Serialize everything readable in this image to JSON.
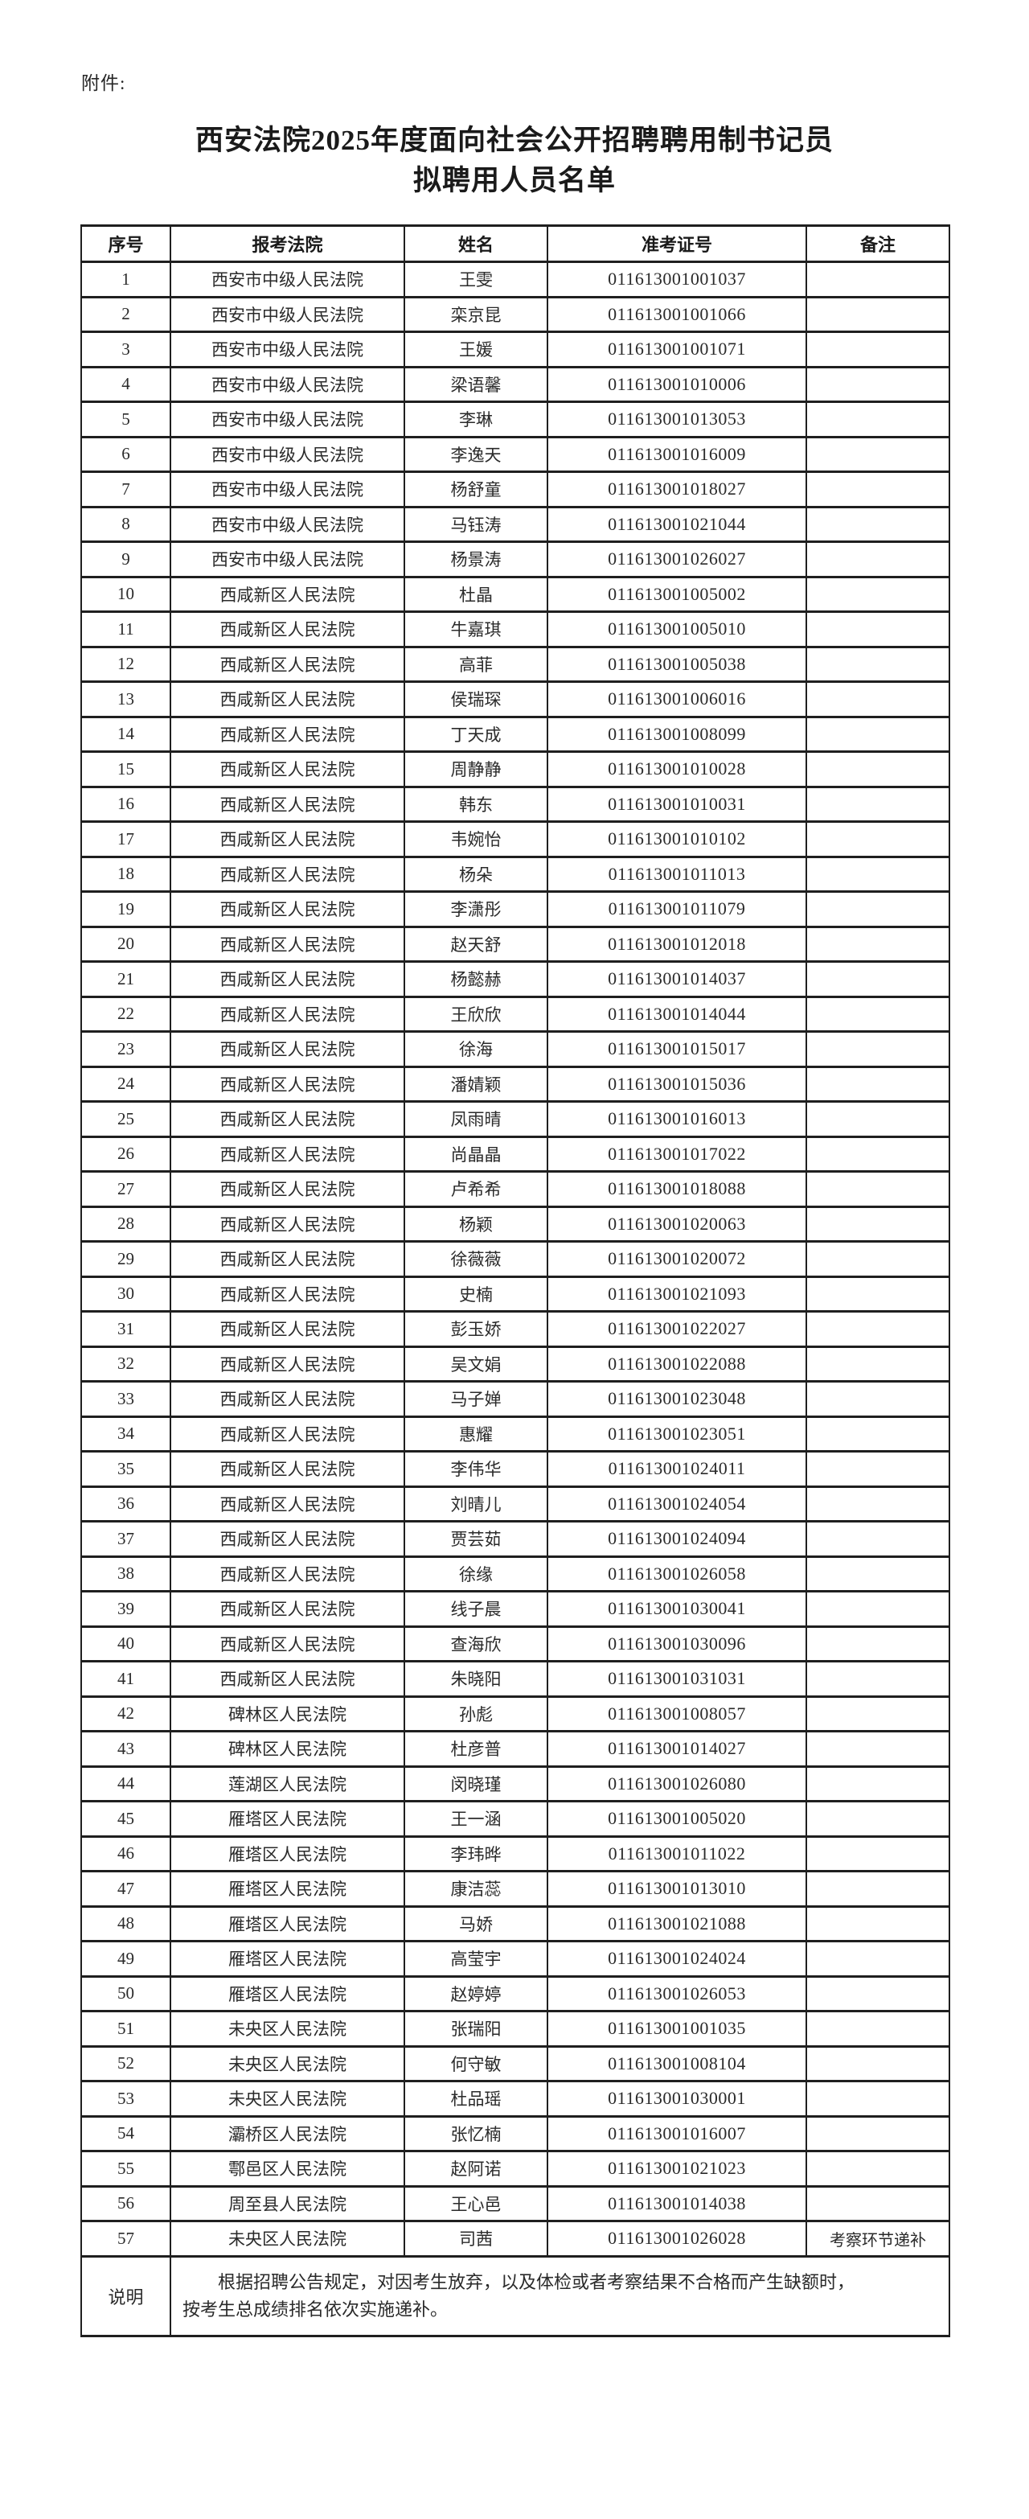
{
  "page": {
    "attachment_label": "附件:",
    "title_line1": "西安法院2025年度面向社会公开招聘聘用制书记员",
    "title_line2": "拟聘用人员名单"
  },
  "table": {
    "headers": [
      "序号",
      "报考法院",
      "姓名",
      "准考证号",
      "备注"
    ],
    "rows": [
      {
        "no": "1",
        "court": "西安市中级人民法院",
        "name": "王雯",
        "ticket": "011613001001037",
        "remark": ""
      },
      {
        "no": "2",
        "court": "西安市中级人民法院",
        "name": "栾京昆",
        "ticket": "011613001001066",
        "remark": ""
      },
      {
        "no": "3",
        "court": "西安市中级人民法院",
        "name": "王媛",
        "ticket": "011613001001071",
        "remark": ""
      },
      {
        "no": "4",
        "court": "西安市中级人民法院",
        "name": "梁语馨",
        "ticket": "011613001010006",
        "remark": ""
      },
      {
        "no": "5",
        "court": "西安市中级人民法院",
        "name": "李琳",
        "ticket": "011613001013053",
        "remark": ""
      },
      {
        "no": "6",
        "court": "西安市中级人民法院",
        "name": "李逸天",
        "ticket": "011613001016009",
        "remark": ""
      },
      {
        "no": "7",
        "court": "西安市中级人民法院",
        "name": "杨舒童",
        "ticket": "011613001018027",
        "remark": ""
      },
      {
        "no": "8",
        "court": "西安市中级人民法院",
        "name": "马钰涛",
        "ticket": "011613001021044",
        "remark": ""
      },
      {
        "no": "9",
        "court": "西安市中级人民法院",
        "name": "杨景涛",
        "ticket": "011613001026027",
        "remark": ""
      },
      {
        "no": "10",
        "court": "西咸新区人民法院",
        "name": "杜晶",
        "ticket": "011613001005002",
        "remark": ""
      },
      {
        "no": "11",
        "court": "西咸新区人民法院",
        "name": "牛嘉琪",
        "ticket": "011613001005010",
        "remark": ""
      },
      {
        "no": "12",
        "court": "西咸新区人民法院",
        "name": "高菲",
        "ticket": "011613001005038",
        "remark": ""
      },
      {
        "no": "13",
        "court": "西咸新区人民法院",
        "name": "侯瑞琛",
        "ticket": "011613001006016",
        "remark": ""
      },
      {
        "no": "14",
        "court": "西咸新区人民法院",
        "name": "丁天成",
        "ticket": "011613001008099",
        "remark": ""
      },
      {
        "no": "15",
        "court": "西咸新区人民法院",
        "name": "周静静",
        "ticket": "011613001010028",
        "remark": ""
      },
      {
        "no": "16",
        "court": "西咸新区人民法院",
        "name": "韩东",
        "ticket": "011613001010031",
        "remark": ""
      },
      {
        "no": "17",
        "court": "西咸新区人民法院",
        "name": "韦婉怡",
        "ticket": "011613001010102",
        "remark": ""
      },
      {
        "no": "18",
        "court": "西咸新区人民法院",
        "name": "杨朵",
        "ticket": "011613001011013",
        "remark": ""
      },
      {
        "no": "19",
        "court": "西咸新区人民法院",
        "name": "李潇彤",
        "ticket": "011613001011079",
        "remark": ""
      },
      {
        "no": "20",
        "court": "西咸新区人民法院",
        "name": "赵天舒",
        "ticket": "011613001012018",
        "remark": ""
      },
      {
        "no": "21",
        "court": "西咸新区人民法院",
        "name": "杨懿赫",
        "ticket": "011613001014037",
        "remark": ""
      },
      {
        "no": "22",
        "court": "西咸新区人民法院",
        "name": "王欣欣",
        "ticket": "011613001014044",
        "remark": ""
      },
      {
        "no": "23",
        "court": "西咸新区人民法院",
        "name": "徐海",
        "ticket": "011613001015017",
        "remark": ""
      },
      {
        "no": "24",
        "court": "西咸新区人民法院",
        "name": "潘婧颖",
        "ticket": "011613001015036",
        "remark": ""
      },
      {
        "no": "25",
        "court": "西咸新区人民法院",
        "name": "凤雨晴",
        "ticket": "011613001016013",
        "remark": ""
      },
      {
        "no": "26",
        "court": "西咸新区人民法院",
        "name": "尚晶晶",
        "ticket": "011613001017022",
        "remark": ""
      },
      {
        "no": "27",
        "court": "西咸新区人民法院",
        "name": "卢希希",
        "ticket": "011613001018088",
        "remark": ""
      },
      {
        "no": "28",
        "court": "西咸新区人民法院",
        "name": "杨颖",
        "ticket": "011613001020063",
        "remark": ""
      },
      {
        "no": "29",
        "court": "西咸新区人民法院",
        "name": "徐薇薇",
        "ticket": "011613001020072",
        "remark": ""
      },
      {
        "no": "30",
        "court": "西咸新区人民法院",
        "name": "史楠",
        "ticket": "011613001021093",
        "remark": ""
      },
      {
        "no": "31",
        "court": "西咸新区人民法院",
        "name": "彭玉娇",
        "ticket": "011613001022027",
        "remark": ""
      },
      {
        "no": "32",
        "court": "西咸新区人民法院",
        "name": "吴文娟",
        "ticket": "011613001022088",
        "remark": ""
      },
      {
        "no": "33",
        "court": "西咸新区人民法院",
        "name": "马子婵",
        "ticket": "011613001023048",
        "remark": ""
      },
      {
        "no": "34",
        "court": "西咸新区人民法院",
        "name": "惠耀",
        "ticket": "011613001023051",
        "remark": ""
      },
      {
        "no": "35",
        "court": "西咸新区人民法院",
        "name": "李伟华",
        "ticket": "011613001024011",
        "remark": ""
      },
      {
        "no": "36",
        "court": "西咸新区人民法院",
        "name": "刘晴儿",
        "ticket": "011613001024054",
        "remark": ""
      },
      {
        "no": "37",
        "court": "西咸新区人民法院",
        "name": "贾芸茹",
        "ticket": "011613001024094",
        "remark": ""
      },
      {
        "no": "38",
        "court": "西咸新区人民法院",
        "name": "徐缘",
        "ticket": "011613001026058",
        "remark": ""
      },
      {
        "no": "39",
        "court": "西咸新区人民法院",
        "name": "线子晨",
        "ticket": "011613001030041",
        "remark": ""
      },
      {
        "no": "40",
        "court": "西咸新区人民法院",
        "name": "查海欣",
        "ticket": "011613001030096",
        "remark": ""
      },
      {
        "no": "41",
        "court": "西咸新区人民法院",
        "name": "朱晓阳",
        "ticket": "011613001031031",
        "remark": ""
      },
      {
        "no": "42",
        "court": "碑林区人民法院",
        "name": "孙彪",
        "ticket": "011613001008057",
        "remark": ""
      },
      {
        "no": "43",
        "court": "碑林区人民法院",
        "name": "杜彦普",
        "ticket": "011613001014027",
        "remark": ""
      },
      {
        "no": "44",
        "court": "莲湖区人民法院",
        "name": "闵晓瑾",
        "ticket": "011613001026080",
        "remark": ""
      },
      {
        "no": "45",
        "court": "雁塔区人民法院",
        "name": "王一涵",
        "ticket": "011613001005020",
        "remark": ""
      },
      {
        "no": "46",
        "court": "雁塔区人民法院",
        "name": "李玮晔",
        "ticket": "011613001011022",
        "remark": ""
      },
      {
        "no": "47",
        "court": "雁塔区人民法院",
        "name": "康洁蕊",
        "ticket": "011613001013010",
        "remark": ""
      },
      {
        "no": "48",
        "court": "雁塔区人民法院",
        "name": "马娇",
        "ticket": "011613001021088",
        "remark": ""
      },
      {
        "no": "49",
        "court": "雁塔区人民法院",
        "name": "高莹宇",
        "ticket": "011613001024024",
        "remark": ""
      },
      {
        "no": "50",
        "court": "雁塔区人民法院",
        "name": "赵婷婷",
        "ticket": "011613001026053",
        "remark": ""
      },
      {
        "no": "51",
        "court": "未央区人民法院",
        "name": "张瑞阳",
        "ticket": "011613001001035",
        "remark": ""
      },
      {
        "no": "52",
        "court": "未央区人民法院",
        "name": "何守敏",
        "ticket": "011613001008104",
        "remark": ""
      },
      {
        "no": "53",
        "court": "未央区人民法院",
        "name": "杜品瑶",
        "ticket": "011613001030001",
        "remark": ""
      },
      {
        "no": "54",
        "court": "灞桥区人民法院",
        "name": "张忆楠",
        "ticket": "011613001016007",
        "remark": ""
      },
      {
        "no": "55",
        "court": "鄠邑区人民法院",
        "name": "赵阿诺",
        "ticket": "011613001021023",
        "remark": ""
      },
      {
        "no": "56",
        "court": "周至县人民法院",
        "name": "王心邑",
        "ticket": "011613001014038",
        "remark": ""
      },
      {
        "no": "57",
        "court": "未央区人民法院",
        "name": "司茜",
        "ticket": "011613001026028",
        "remark": "考察环节递补"
      }
    ],
    "footer": {
      "label": "说明",
      "text_line1": "根据招聘公告规定，对因考生放弃，以及体检或者考察结果不合格而产生缺额时，",
      "text_line2": "按考生总成绩排名依次实施递补。"
    }
  }
}
